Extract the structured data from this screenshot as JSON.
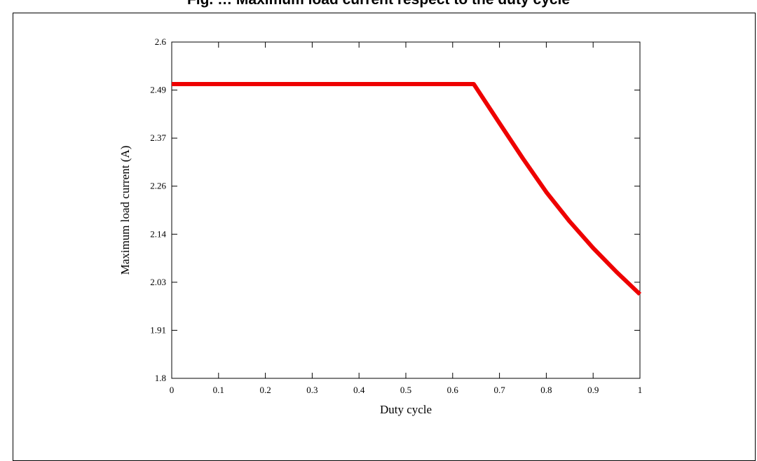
{
  "page": {
    "title": "Fig. … Maximum load current respect to the duty cycle"
  },
  "chart_data": {
    "type": "line",
    "title": "Fig. … Maximum load current respect to the duty cycle",
    "xlabel": "Duty cycle",
    "ylabel": "Maximum load current (A)",
    "xlim": [
      0,
      1
    ],
    "ylim": [
      1.8,
      2.6
    ],
    "xticks": [
      "0",
      "0.1",
      "0.2",
      "0.3",
      "0.4",
      "0.5",
      "0.6",
      "0.7",
      "0.8",
      "0.9",
      "1"
    ],
    "yticks": [
      "1.8",
      "1.91",
      "2.03",
      "2.14",
      "2.26",
      "2.37",
      "2.49",
      "2.6"
    ],
    "grid": false,
    "series": [
      {
        "color": "#ee0000",
        "x": [
          0,
          0.1,
          0.2,
          0.3,
          0.4,
          0.5,
          0.6,
          0.645,
          0.7,
          0.75,
          0.8,
          0.85,
          0.9,
          0.95,
          1.0
        ],
        "y": [
          2.5,
          2.5,
          2.5,
          2.5,
          2.5,
          2.5,
          2.5,
          2.5,
          2.407,
          2.323,
          2.243,
          2.173,
          2.11,
          2.053,
          2.0
        ]
      }
    ]
  }
}
